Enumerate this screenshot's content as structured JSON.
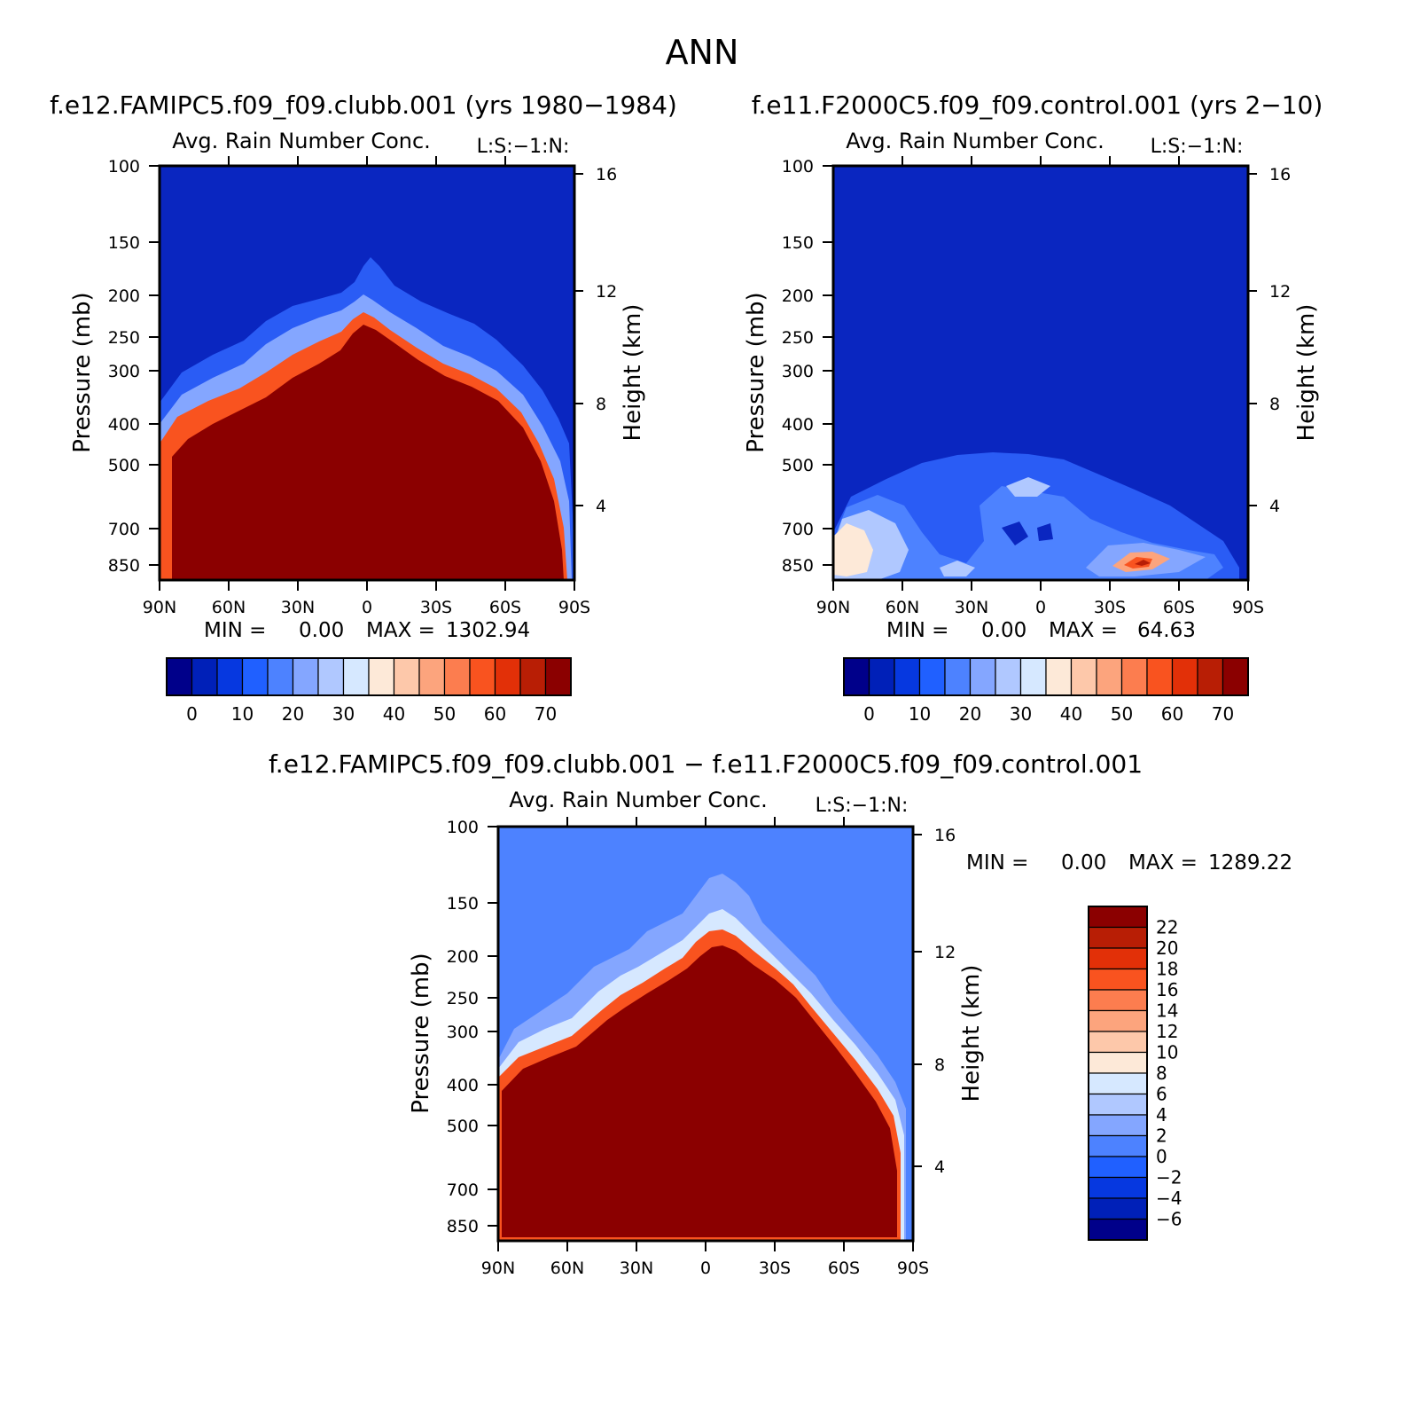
{
  "figure_title": "ANN",
  "chart_data": [
    {
      "type": "heatmap",
      "case_title": "f.e12.FAMIPC5.f09_f09.clubb.001 (yrs 1980−1984)",
      "variable_title": "Avg. Rain Number Conc.",
      "corner_label": "L:S:−1:N:",
      "ylabel": "Pressure (mb)",
      "ylabel_right": "Height (km)",
      "pressure_ticks": [
        "100",
        "150",
        "200",
        "250",
        "300",
        "400",
        "500",
        "700",
        "850"
      ],
      "height_ticks": [
        "16",
        "12",
        "8",
        "4"
      ],
      "x_ticks": [
        "90N",
        "60N",
        "30N",
        "0",
        "30S",
        "60S",
        "90S"
      ],
      "stats": {
        "min_label": "MIN =",
        "min_value": "0.00",
        "max_label": "MAX =",
        "max_value": "1302.94"
      },
      "colorbar": {
        "orientation": "horizontal",
        "labels": [
          "0",
          "10",
          "20",
          "30",
          "40",
          "50",
          "60",
          "70"
        ],
        "colors": [
          "#00008a",
          "#0020b8",
          "#0638e0",
          "#2060ff",
          "#4d82ff",
          "#84a6ff",
          "#b0c8ff",
          "#d6e8ff",
          "#fde9d8",
          "#fdc8aa",
          "#fca47d",
          "#fc7d4f",
          "#f9531f",
          "#e23008",
          "#b81e05",
          "#8b0000"
        ]
      },
      "field_description": "near-surface max at tropics, contours fall from ~200 mb at equator to ~500 mb near poles"
    },
    {
      "type": "heatmap",
      "case_title": "f.e11.F2000C5.f09_f09.control.001 (yrs 2−10)",
      "variable_title": "Avg. Rain Number Conc.",
      "corner_label": "L:S:−1:N:",
      "ylabel": "Pressure (mb)",
      "ylabel_right": "Height (km)",
      "pressure_ticks": [
        "100",
        "150",
        "200",
        "250",
        "300",
        "400",
        "500",
        "700",
        "850"
      ],
      "height_ticks": [
        "16",
        "12",
        "8",
        "4"
      ],
      "x_ticks": [
        "90N",
        "60N",
        "30N",
        "0",
        "30S",
        "60S",
        "90S"
      ],
      "stats": {
        "min_label": "MIN =",
        "min_value": "0.00",
        "max_label": "MAX =",
        "max_value": "64.63"
      },
      "colorbar": {
        "orientation": "horizontal",
        "labels": [
          "0",
          "10",
          "20",
          "30",
          "40",
          "50",
          "60",
          "70"
        ],
        "colors": [
          "#00008a",
          "#0020b8",
          "#0638e0",
          "#2060ff",
          "#4d82ff",
          "#84a6ff",
          "#b0c8ff",
          "#d6e8ff",
          "#fde9d8",
          "#fdc8aa",
          "#fca47d",
          "#fc7d4f",
          "#f9531f",
          "#e23008",
          "#b81e05",
          "#8b0000"
        ]
      }
    },
    {
      "type": "heatmap",
      "case_title": "f.e12.FAMIPC5.f09_f09.clubb.001 − f.e11.F2000C5.f09_f09.control.001",
      "variable_title": "Avg. Rain Number Conc.",
      "corner_label": "L:S:−1:N:",
      "ylabel": "Pressure (mb)",
      "ylabel_right": "Height (km)",
      "pressure_ticks": [
        "100",
        "150",
        "200",
        "250",
        "300",
        "400",
        "500",
        "700",
        "850"
      ],
      "height_ticks": [
        "16",
        "12",
        "8",
        "4"
      ],
      "x_ticks": [
        "90N",
        "60N",
        "30N",
        "0",
        "30S",
        "60S",
        "90S"
      ],
      "stats": {
        "min_label": "MIN =",
        "min_value": "0.00",
        "max_label": "MAX =",
        "max_value": "1289.22"
      },
      "colorbar": {
        "orientation": "vertical",
        "labels": [
          "22",
          "20",
          "18",
          "16",
          "14",
          "12",
          "10",
          "8",
          "6",
          "4",
          "2",
          "0",
          "−2",
          "−4",
          "−6"
        ],
        "colors": [
          "#8b0000",
          "#b81e05",
          "#e23008",
          "#f9531f",
          "#fc7d4f",
          "#fca47d",
          "#fdc8aa",
          "#fde9d8",
          "#d6e8ff",
          "#b0c8ff",
          "#84a6ff",
          "#4d82ff",
          "#2060ff",
          "#0638e0",
          "#0020b8",
          "#00008a"
        ]
      }
    }
  ]
}
